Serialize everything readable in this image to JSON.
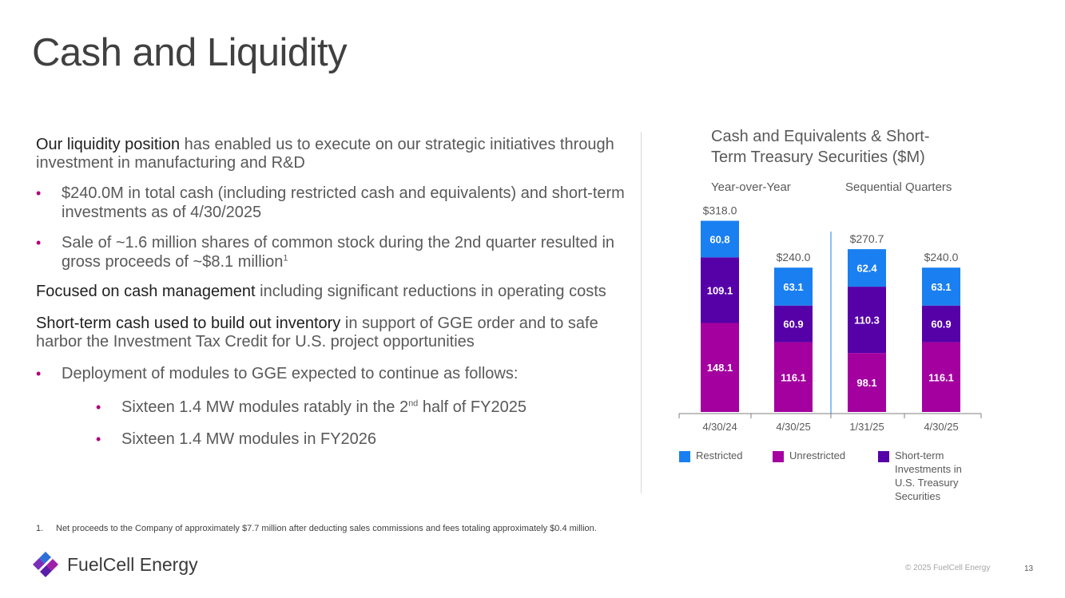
{
  "title": "Cash and Liquidity",
  "left": {
    "p1_lead": "Our liquidity position",
    "p1_rest": " has enabled us to execute on our strategic initiatives through investment in manufacturing and R&D",
    "b1": "$240.0M  in total cash (including restricted cash and equivalents) and short-term investments as of 4/30/2025",
    "b2": "Sale of ~1.6 million shares of common stock during the 2nd quarter resulted in gross proceeds of ~$8.1 million",
    "b2_sup": "1",
    "p2_lead": "Focused on cash management",
    "p2_rest": " including significant reductions in operating costs",
    "p3_lead": "Short-term cash used to build out inventory",
    "p3_rest": " in support of GGE order and to safe harbor the Investment Tax Credit for U.S. project opportunities",
    "b3": "Deployment of modules to GGE expected to continue as follows:",
    "s1_a": "Sixteen 1.4 MW modules ratably in the 2",
    "s1_sup": "nd",
    "s1_b": " half of FY2025",
    "s2": "Sixteen 1.4 MW modules in FY2026"
  },
  "footnote": {
    "num": "1.",
    "text": "Net proceeds to the Company of approximately $7.7 million after deducting sales commissions and fees totaling approximately $0.4 million."
  },
  "footer": {
    "company": "FuelCell Energy",
    "copyright": "© 2025 FuelCell Energy",
    "page": "13"
  },
  "colors": {
    "restricted": "#1a7ff0",
    "unrestricted": "#a3009f",
    "short_term": "#5600a8",
    "bullet": "#b0007a"
  },
  "chart_data": {
    "type": "bar",
    "stacked": true,
    "title": "Cash and Equivalents & Short-Term Treasury Securities ($M)",
    "group_labels": [
      "Year-over-Year",
      "Sequential Quarters"
    ],
    "categories": [
      "4/30/24",
      "4/30/25",
      "1/31/25",
      "4/30/25"
    ],
    "totals": [
      "$318.0",
      "$240.0",
      "$270.7",
      "$240.0"
    ],
    "series": [
      {
        "name": "Unrestricted",
        "values": [
          148.1,
          116.1,
          98.1,
          116.1
        ]
      },
      {
        "name": "Short-term Investments in U.S. Treasury Securities",
        "values": [
          109.1,
          60.9,
          110.3,
          60.9
        ]
      },
      {
        "name": "Restricted",
        "values": [
          60.8,
          63.1,
          62.4,
          63.1
        ]
      }
    ],
    "legend": [
      "Restricted",
      "Unrestricted",
      "Short-term Investments in U.S. Treasury Securities"
    ],
    "ylim": [
      0,
      330
    ],
    "legend_position": "bottom"
  }
}
